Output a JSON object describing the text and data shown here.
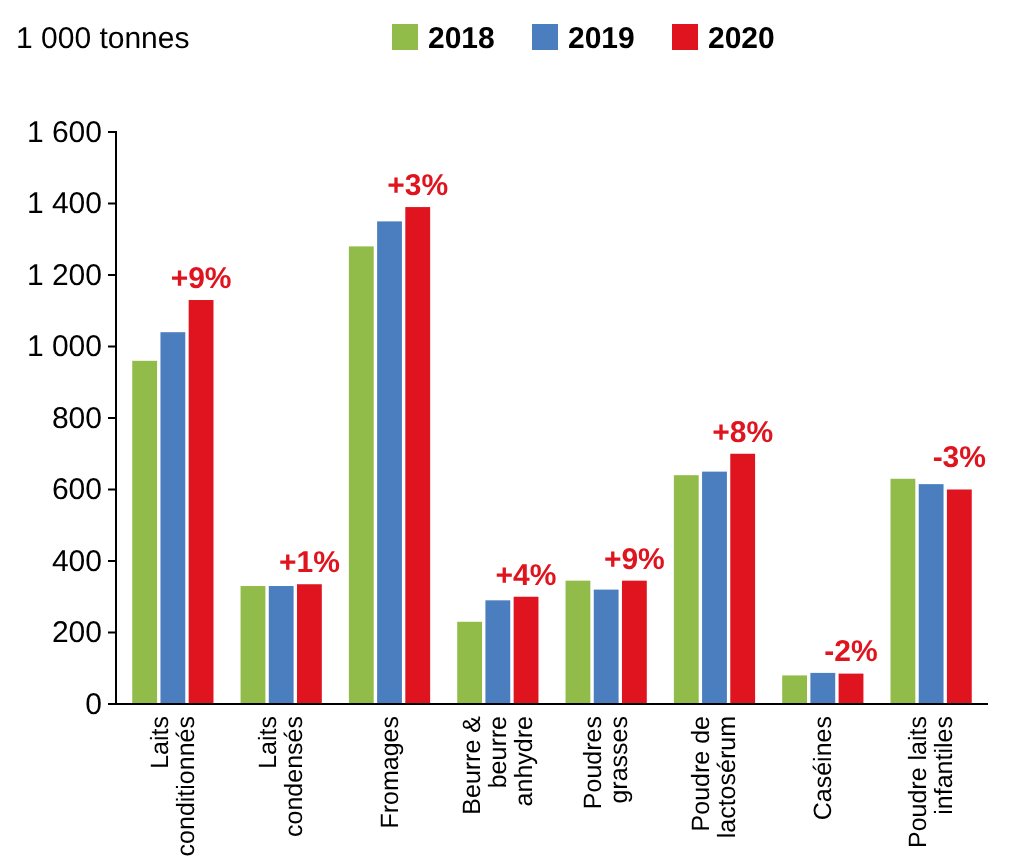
{
  "chart_data": {
    "type": "bar",
    "ylabel": "1 000 tonnes",
    "categories": [
      "Laits conditionnés",
      "Laits condensés",
      "Fromages",
      "Beurre & beurre anhydre",
      "Poudres grasses",
      "Poudre de lactosérum",
      "Caséines",
      "Poudre laits infantiles"
    ],
    "series": [
      {
        "name": "2018",
        "color": "#92bc4a",
        "values": [
          960,
          330,
          1280,
          230,
          345,
          640,
          80,
          630
        ]
      },
      {
        "name": "2019",
        "color": "#4a7ebf",
        "values": [
          1040,
          330,
          1350,
          290,
          320,
          650,
          87,
          615
        ]
      },
      {
        "name": "2020",
        "color": "#e0141e",
        "values": [
          1130,
          335,
          1390,
          300,
          345,
          700,
          85,
          600
        ]
      }
    ],
    "ylim": [
      0,
      1600
    ],
    "yticks": [
      0,
      200,
      400,
      600,
      800,
      {
        "value": 1000,
        "label": "1 000"
      },
      {
        "value": 1200,
        "label": "1 200"
      },
      {
        "value": 1400,
        "label": "1 400"
      },
      {
        "value": 1600,
        "label": "1 600"
      }
    ],
    "annotations": [
      "+9%",
      "+1%",
      "+3%",
      "+4%",
      "+9%",
      "+8%",
      "-2%",
      "-3%"
    ],
    "grid": false,
    "legend": "top"
  }
}
